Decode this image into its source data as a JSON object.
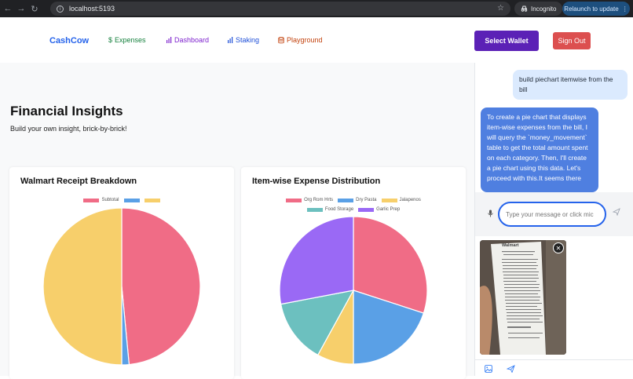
{
  "browser": {
    "url": "localhost:5193",
    "incognito_label": "Incognito",
    "relaunch_label": "Relaunch to update"
  },
  "app": {
    "brand": "CashCow",
    "nav": [
      {
        "label": "Expenses",
        "icon": "dollar-icon",
        "color": "#15803d"
      },
      {
        "label": "Dashboard",
        "icon": "bar-chart-icon",
        "color": "#7e22ce"
      },
      {
        "label": "Staking",
        "icon": "bar-chart-icon",
        "color": "#1d4ed8"
      },
      {
        "label": "Playground",
        "icon": "database-icon",
        "color": "#c2410c"
      }
    ],
    "select_wallet": "Select Wallet",
    "sign_out": "Sign Out"
  },
  "page": {
    "title": "Financial Insights",
    "subtitle": "Build your own insight, brick-by-brick!"
  },
  "chart_data": [
    {
      "type": "pie",
      "title": "Walmart Receipt Breakdown",
      "categories": [
        "Subtotal",
        "",
        ""
      ],
      "values": [
        48.5,
        1.5,
        50
      ],
      "colors": [
        "#f06c86",
        "#5aa0e6",
        "#f7cf6b"
      ],
      "legend": "top"
    },
    {
      "type": "pie",
      "title": "Item-wise Expense Distribution",
      "categories": [
        "Org Rom Hrts",
        "Dry Pasta",
        "Jalapenos",
        "Food Storage",
        "Garlic Prep"
      ],
      "values": [
        30,
        20,
        8,
        14,
        28
      ],
      "colors": [
        "#f06c86",
        "#5aa0e6",
        "#f7cf6b",
        "#6cc0bf",
        "#9a69f5"
      ],
      "legend": "top"
    }
  ],
  "chat": {
    "user_message": "build piechart itemwise from the bill",
    "bot_message": "To create a pie chart that displays item-wise expenses from the bill, I will query the `money_movement` table to get the total amount spent on each category. Then, I'll create a pie chart using this data. Let's proceed with this.It seems there",
    "input_placeholder": "Type your message or click mic",
    "receipt_header": "Walmart"
  }
}
